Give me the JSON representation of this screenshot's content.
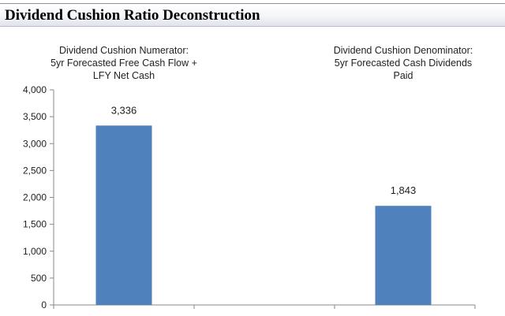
{
  "header": {
    "title": "Dividend Cushion Ratio Deconstruction"
  },
  "colors": {
    "bar": "#4f81bd",
    "axis": "#888888",
    "text": "#222222"
  },
  "chart_data": {
    "type": "bar",
    "title": "Dividend Cushion Ratio Deconstruction",
    "xlabel": "",
    "ylabel": "",
    "ylim": [
      0,
      4000
    ],
    "yticks": [
      0,
      500,
      1000,
      1500,
      2000,
      2500,
      3000,
      3500,
      4000
    ],
    "ytick_labels": [
      "0",
      "500",
      "1,000",
      "1,500",
      "2,000",
      "2,500",
      "3,000",
      "3,500",
      "4,000"
    ],
    "grid": false,
    "legend": "none",
    "categories": [
      "Dividend Cushion Numerator:\n5yr Forecasted Free Cash Flow +\nLFY Net Cash",
      "Dividend Cushion Denominator:\n5yr Forecasted Cash Dividends\nPaid"
    ],
    "values": [
      3336,
      1843
    ],
    "data_labels": [
      "3,336",
      "1,843"
    ]
  }
}
